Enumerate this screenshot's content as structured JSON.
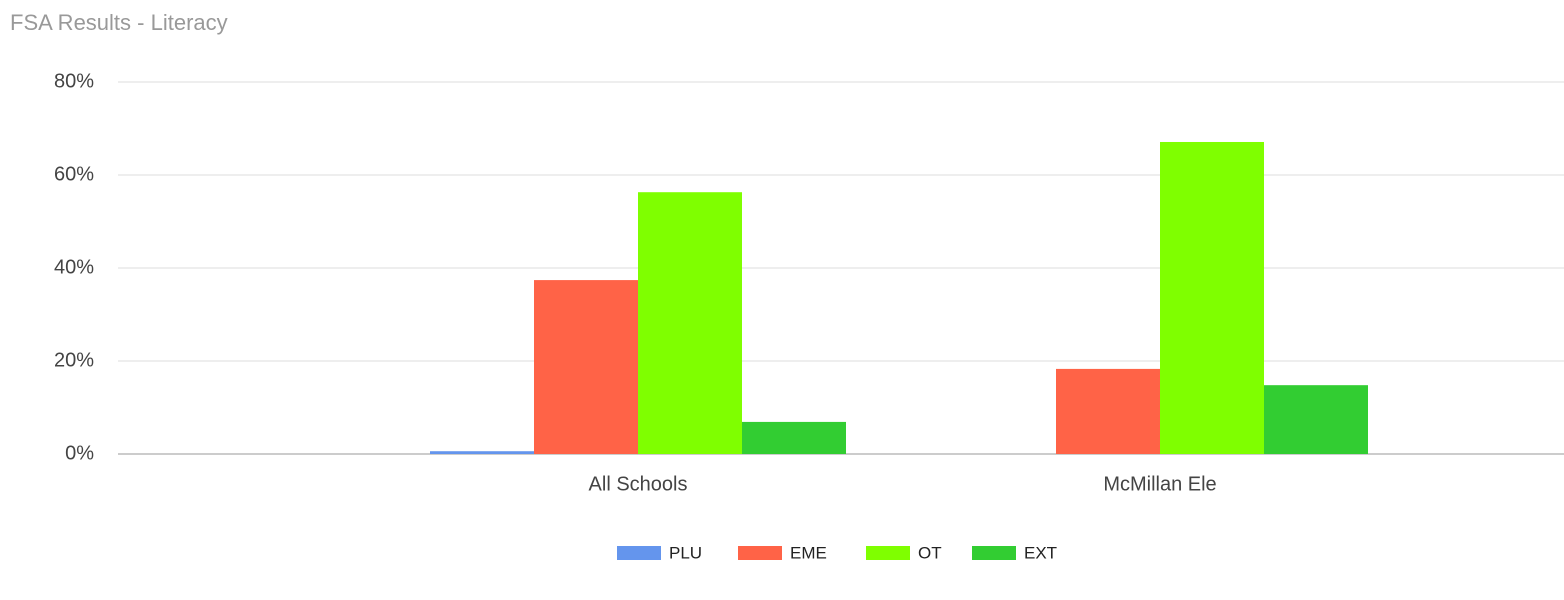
{
  "chart_data": {
    "type": "bar",
    "title": "FSA Results - Literacy",
    "categories": [
      "All Schools",
      "McMillan Ele"
    ],
    "series": [
      {
        "name": "PLU",
        "color": "#6495ed",
        "values": [
          0.6,
          0
        ]
      },
      {
        "name": "EME",
        "color": "#ff6347",
        "values": [
          37.4,
          18.3
        ]
      },
      {
        "name": "OT",
        "color": "#7fff00",
        "values": [
          56.3,
          67.1
        ]
      },
      {
        "name": "EXT",
        "color": "#32cd32",
        "values": [
          6.9,
          14.8
        ]
      }
    ],
    "ylim": [
      0,
      80
    ],
    "yticks": [
      {
        "value": 0,
        "label": "0%"
      },
      {
        "value": 20,
        "label": "20%"
      },
      {
        "value": 40,
        "label": "40%"
      },
      {
        "value": 60,
        "label": "60%"
      },
      {
        "value": 80,
        "label": "80%"
      }
    ],
    "grid": true,
    "legend": "bottom"
  }
}
